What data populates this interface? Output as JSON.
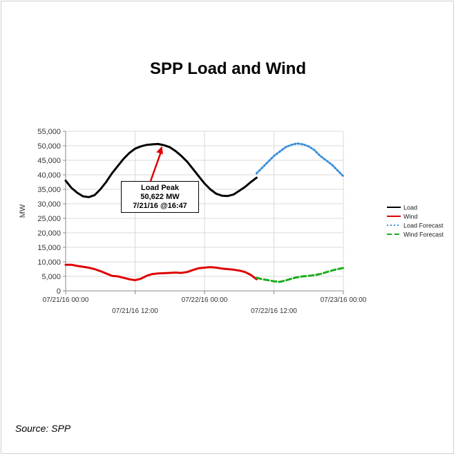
{
  "title": "SPP Load and Wind",
  "source": "Source: SPP",
  "chart_data": {
    "type": "line",
    "title": "SPP Load and Wind",
    "ylabel": "MW",
    "xlabel": "",
    "ylim": [
      0,
      55000
    ],
    "yticks": [
      0,
      5000,
      10000,
      15000,
      20000,
      25000,
      30000,
      35000,
      40000,
      45000,
      50000,
      55000
    ],
    "ytick_labels": [
      "0",
      "5,000",
      "10,000",
      "15,000",
      "20,000",
      "25,000",
      "30,000",
      "35,000",
      "40,000",
      "45,000",
      "50,000",
      "55,000"
    ],
    "xlim_hours": [
      0,
      48
    ],
    "xticks": [
      {
        "hour": 0,
        "label": "07/21/16 00:00"
      },
      {
        "hour": 12,
        "label": "07/21/16 12:00"
      },
      {
        "hour": 24,
        "label": "07/22/16 00:00"
      },
      {
        "hour": 36,
        "label": "07/22/16 12:00"
      },
      {
        "hour": 48,
        "label": "07/23/16 00:00"
      }
    ],
    "grid": true,
    "legend_position": "right",
    "series": [
      {
        "name": "Load",
        "color": "#000000",
        "style": "solid",
        "x": [
          0,
          1,
          2,
          3,
          4,
          5,
          6,
          7,
          8,
          9,
          10,
          11,
          12,
          13,
          14,
          15,
          16,
          17,
          18,
          19,
          20,
          21,
          22,
          23,
          24,
          25,
          26,
          27,
          28,
          29,
          30,
          31,
          32,
          33
        ],
        "y": [
          38000,
          35500,
          33800,
          32600,
          32300,
          33000,
          35000,
          37500,
          40500,
          43000,
          45500,
          47500,
          49000,
          49800,
          50300,
          50500,
          50622,
          50200,
          49500,
          48200,
          46500,
          44500,
          42000,
          39500,
          37000,
          35000,
          33500,
          32800,
          32700,
          33200,
          34500,
          35800,
          37500,
          39000
        ]
      },
      {
        "name": "Wind",
        "color": "#e00000",
        "style": "solid",
        "x": [
          0,
          1,
          2,
          3,
          4,
          5,
          6,
          7,
          8,
          9,
          10,
          11,
          12,
          13,
          14,
          15,
          16,
          17,
          18,
          19,
          20,
          21,
          22,
          23,
          24,
          25,
          26,
          27,
          28,
          29,
          30,
          31,
          32,
          33
        ],
        "y": [
          9000,
          9000,
          8600,
          8300,
          8000,
          7500,
          6800,
          6000,
          5200,
          5000,
          4500,
          4000,
          3700,
          4200,
          5200,
          5800,
          6000,
          6100,
          6200,
          6300,
          6200,
          6500,
          7200,
          7800,
          8000,
          8200,
          8000,
          7700,
          7500,
          7300,
          7000,
          6500,
          5500,
          4000
        ]
      },
      {
        "name": "Load Forecast",
        "color": "#3a8fdc",
        "style": "dotted",
        "x": [
          33,
          34,
          35,
          36,
          37,
          38,
          39,
          40,
          41,
          42,
          43,
          44,
          45,
          46,
          47,
          48
        ],
        "y": [
          40500,
          42500,
          44500,
          46500,
          48000,
          49500,
          50300,
          50800,
          50500,
          49800,
          48500,
          46500,
          45000,
          43500,
          41500,
          39500
        ]
      },
      {
        "name": "Wind Forecast",
        "color": "#1aaa1a",
        "style": "dashed",
        "x": [
          33,
          34,
          35,
          36,
          37,
          38,
          39,
          40,
          41,
          42,
          43,
          44,
          45,
          46,
          47,
          48
        ],
        "y": [
          4500,
          4000,
          3700,
          3300,
          3100,
          3600,
          4200,
          4700,
          5000,
          5200,
          5400,
          5800,
          6400,
          7000,
          7500,
          7900
        ]
      }
    ],
    "annotation": {
      "lines": [
        "Load Peak",
        "50,622 MW",
        "7/21/16 @16:47"
      ],
      "hour": 16.78,
      "value": 50622
    }
  }
}
